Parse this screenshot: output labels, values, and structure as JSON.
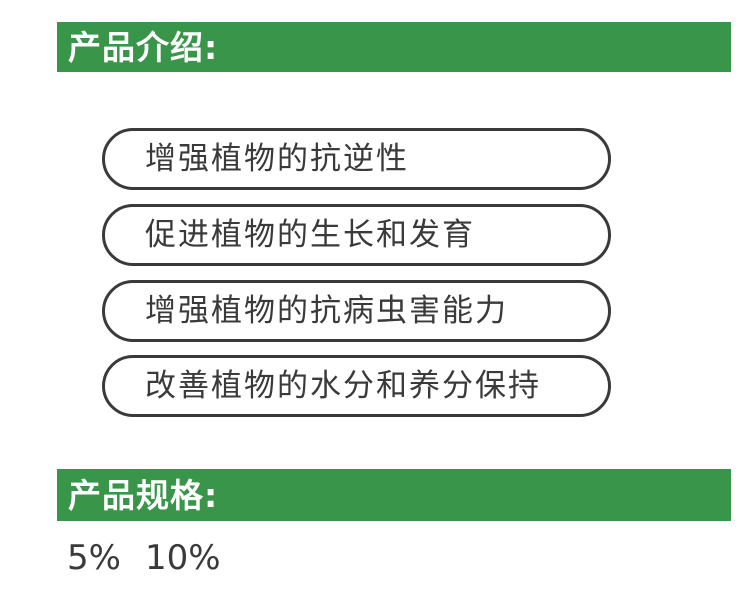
{
  "colors": {
    "banner_green": "#38954a",
    "banner_text": "#ffffff",
    "pill_border": "#3a3a3a",
    "text_dark": "#3a3a3a",
    "page_background": "#ffffff"
  },
  "intro": {
    "title": "产品介绍:",
    "features": [
      "增强植物的抗逆性",
      "促进植物的生长和发育",
      "增强植物的抗病虫害能力",
      "改善植物的水分和养分保持"
    ]
  },
  "spec": {
    "title": "产品规格:",
    "values": [
      "5%",
      "10%"
    ]
  }
}
